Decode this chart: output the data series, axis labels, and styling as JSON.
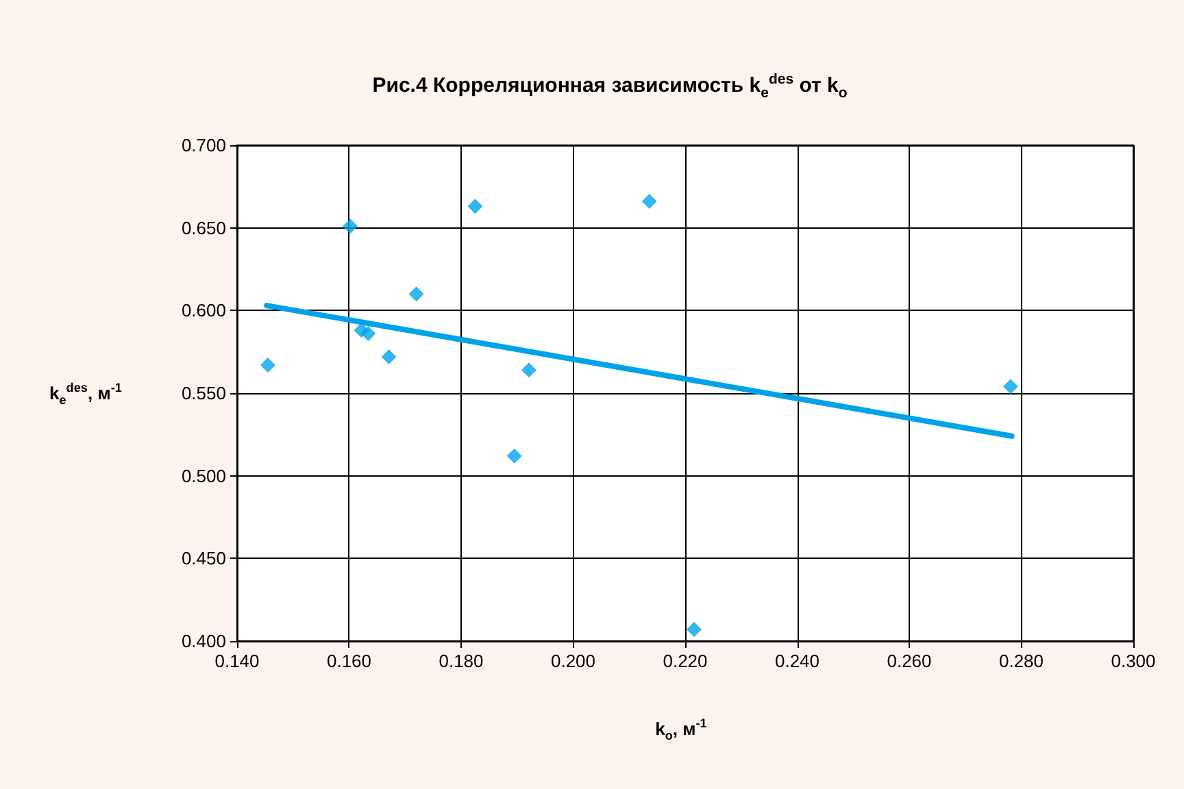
{
  "chart_data": {
    "type": "scatter",
    "title": "Рис.4 Корреляционная зависимость k$_{e}$$^{des}$ от k$_{o}$",
    "xlabel": "k$_{o}$, м$^{-1}$",
    "ylabel": "k$_{e}$$^{des}$, м$^{-1}$",
    "xlim": [
      0.14,
      0.3
    ],
    "xticks": [
      {
        "value": 0.14,
        "label": "0.140"
      },
      {
        "value": 0.16,
        "label": "0.160"
      },
      {
        "value": 0.18,
        "label": "0.180"
      },
      {
        "value": 0.2,
        "label": "0.200"
      },
      {
        "value": 0.22,
        "label": "0.220"
      },
      {
        "value": 0.24,
        "label": "0.240"
      },
      {
        "value": 0.26,
        "label": "0.260"
      },
      {
        "value": 0.28,
        "label": "0.280"
      },
      {
        "value": 0.3,
        "label": "0.300"
      }
    ],
    "ylim": [
      0.4,
      0.7
    ],
    "yticks": [
      {
        "value": 0.4,
        "label": "0.400"
      },
      {
        "value": 0.45,
        "label": "0.450"
      },
      {
        "value": 0.5,
        "label": "0.500"
      },
      {
        "value": 0.55,
        "label": "0.550"
      },
      {
        "value": 0.6,
        "label": "0.600"
      },
      {
        "value": 0.65,
        "label": "0.650"
      },
      {
        "value": 0.7,
        "label": "0.700"
      }
    ],
    "grid": true,
    "series": [
      {
        "marker": "diamond",
        "color": "#00a2e8",
        "x": [
          0.1455,
          0.1602,
          0.1622,
          0.1634,
          0.1671,
          0.172,
          0.1825,
          0.1895,
          0.1921,
          0.2136,
          0.2216,
          0.2781
        ],
        "values": [
          0.567,
          0.651,
          0.588,
          0.586,
          0.572,
          0.61,
          0.663,
          0.512,
          0.564,
          0.666,
          0.407,
          0.554
        ]
      },
      {
        "type": "line",
        "marker": "none",
        "line_style": "solid",
        "color": "#00a2e8",
        "x": [
          0.1453,
          0.2783
        ],
        "values": [
          0.603,
          0.524
        ]
      }
    ]
  }
}
